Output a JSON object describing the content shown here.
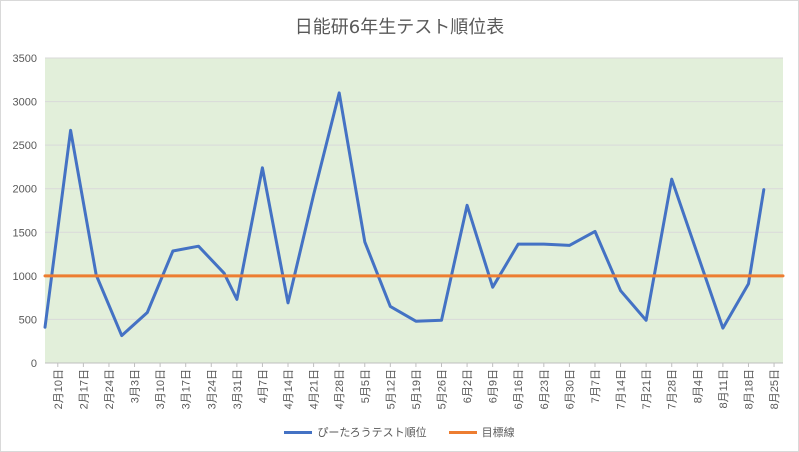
{
  "chart_data": {
    "type": "line",
    "title": "日能研6年生テスト順位表",
    "categories": [
      "2月10日",
      "2月17日",
      "2月24日",
      "3月3日",
      "3月10日",
      "3月17日",
      "3月24日",
      "3月31日",
      "4月7日",
      "4月14日",
      "4月21日",
      "4月28日",
      "5月5日",
      "5月12日",
      "5月19日",
      "5月26日",
      "6月2日",
      "6月9日",
      "6月16日",
      "6月23日",
      "6月30日",
      "7月7日",
      "7月14日",
      "7月21日",
      "7月28日",
      "8月4日",
      "8月11日",
      "8月18日",
      "8月25日"
    ],
    "x_tick_positions": [
      1,
      2,
      3,
      4,
      5,
      6,
      7,
      8,
      9,
      10,
      11,
      12,
      13,
      14,
      15,
      16,
      17,
      18,
      19,
      20,
      21,
      22,
      23,
      24,
      25,
      26,
      27,
      28,
      29
    ],
    "xlim": [
      0.5,
      29.35
    ],
    "ylim": [
      0,
      3500
    ],
    "yticks": [
      0,
      500,
      1000,
      1500,
      2000,
      2500,
      3000,
      3500
    ],
    "grid": true,
    "legend_position": "bottom",
    "plot_background": "#e2efda",
    "series": [
      {
        "name": "ぴーたろうテスト順位",
        "color": "#4472c4",
        "x": [
          0.5,
          1.5,
          2.5,
          3.5,
          4.5,
          5.5,
          6.5,
          7.5,
          8.0,
          9.0,
          10.0,
          11.0,
          12.0,
          13.0,
          14.0,
          15.0,
          16.0,
          17.0,
          18.0,
          19.0,
          20.0,
          21.0,
          22.0,
          23.0,
          24.0,
          25.0,
          27.0,
          28.0,
          28.6
        ],
        "values": [
          410,
          2670,
          1010,
          315,
          580,
          1285,
          1340,
          1030,
          730,
          2240,
          690,
          1930,
          3100,
          1390,
          650,
          480,
          490,
          1810,
          870,
          1365,
          1365,
          1350,
          1510,
          830,
          490,
          2110,
          400,
          910,
          1990
        ]
      },
      {
        "name": "目標線",
        "color": "#ed7d31",
        "x": [
          0.5,
          29.35
        ],
        "values": [
          1000,
          1000
        ]
      }
    ]
  }
}
